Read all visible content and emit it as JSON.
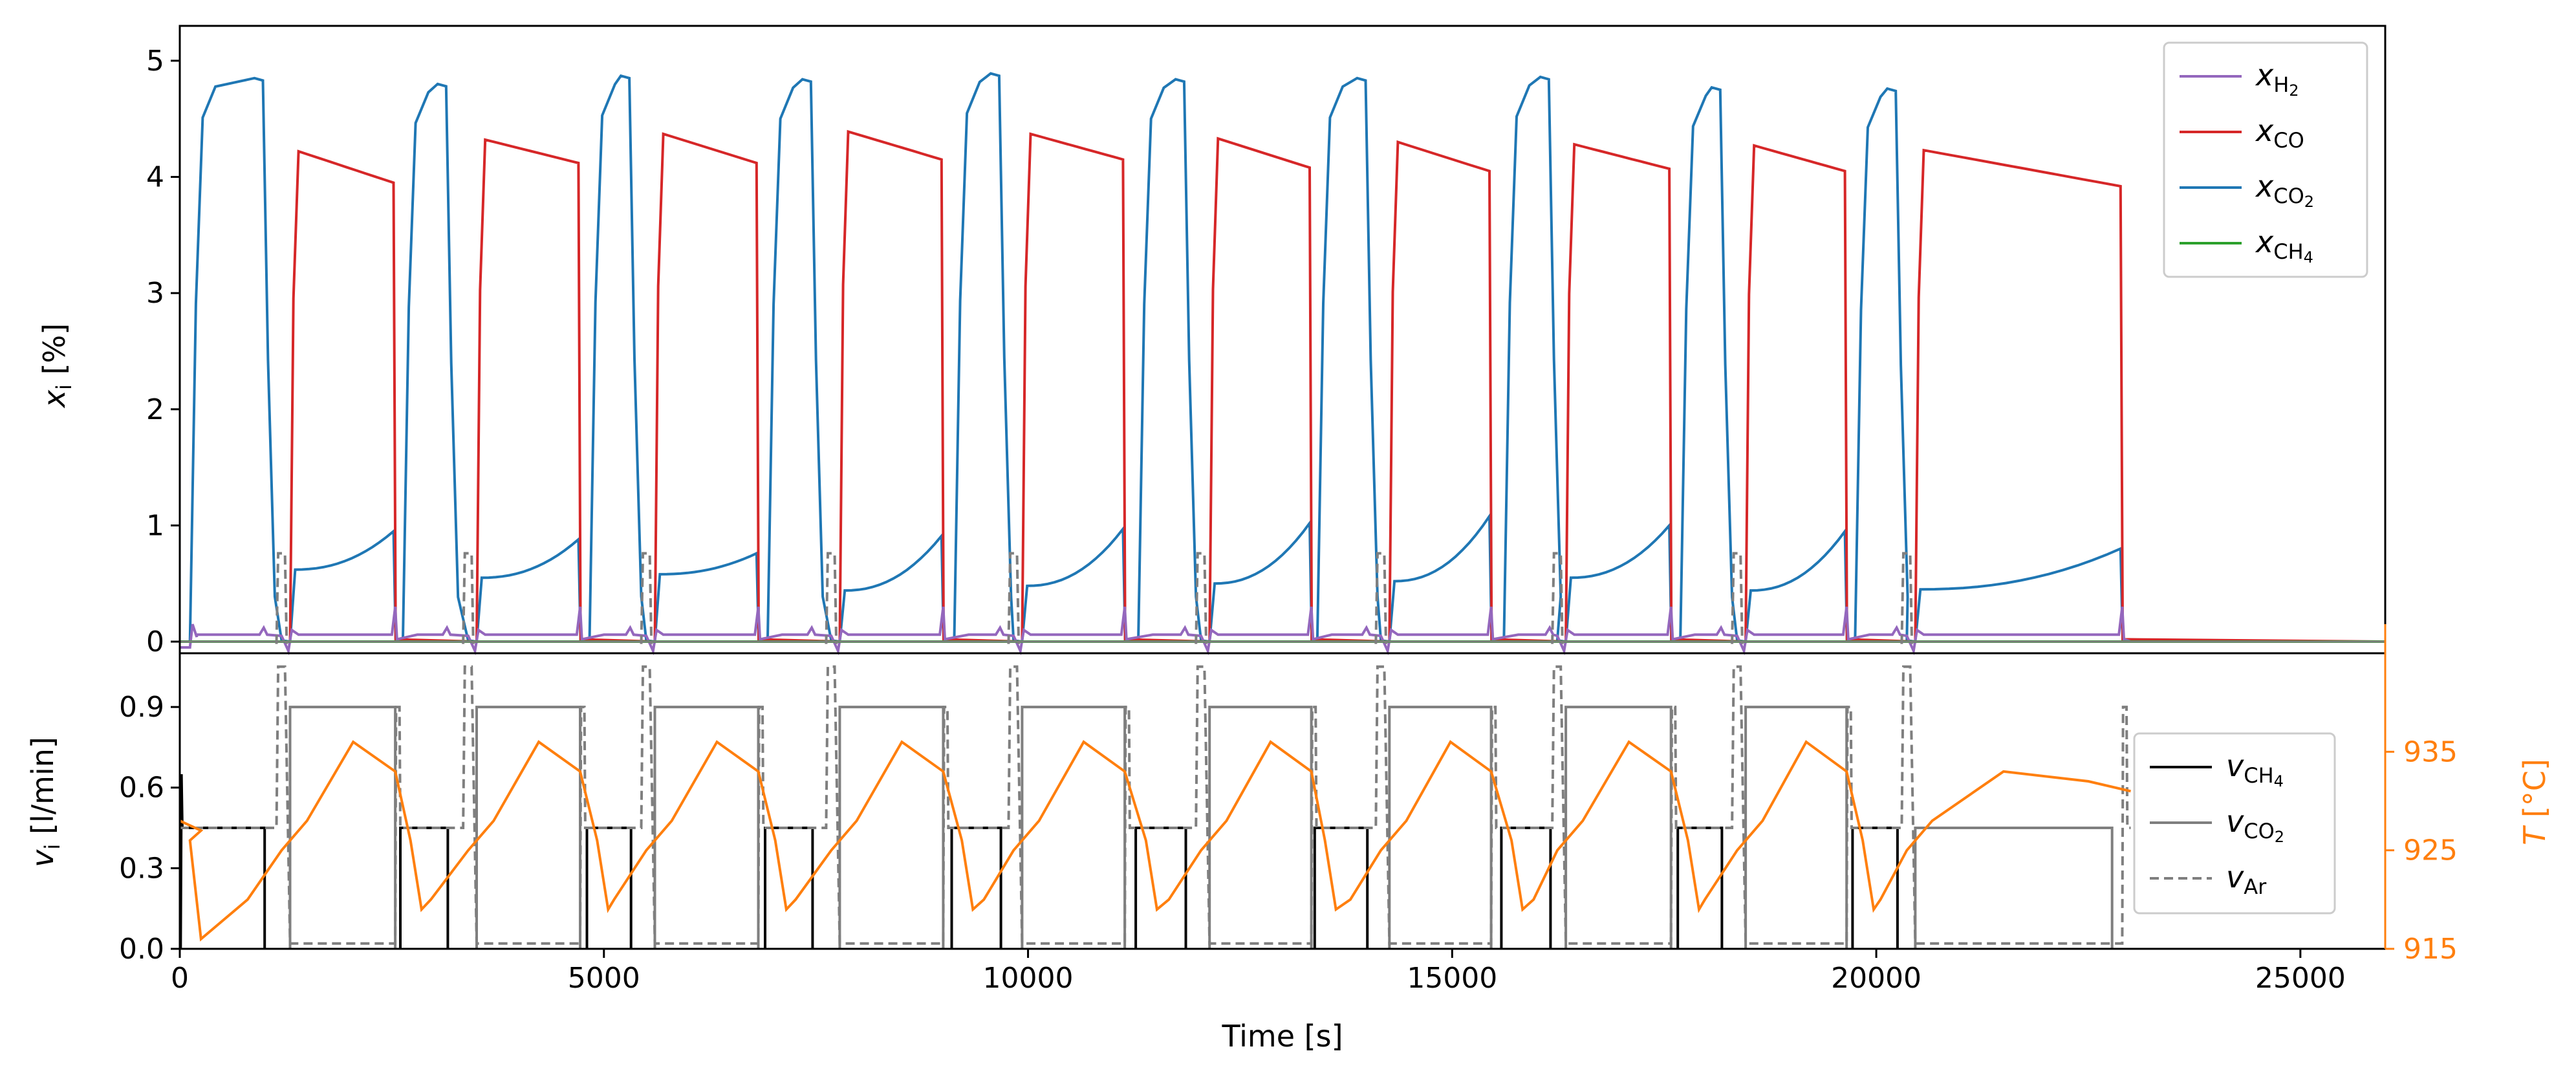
{
  "colors": {
    "h2": "#9467bd",
    "co": "#d62728",
    "co2": "#1f77b4",
    "ch4": "#2ca02c",
    "v_ch4": "#000000",
    "v_co2": "#7f7f7f",
    "v_ar": "#7f7f7f",
    "temperature": "#ff7f0e"
  },
  "chart_data": [
    {
      "type": "line",
      "panel": "top",
      "xlabel": "",
      "ylabel": "x_i [%]",
      "ylabel_parts": {
        "var": "x",
        "sub": "i",
        "unit": " [%]"
      },
      "xlim": [
        0,
        26000
      ],
      "ylim": [
        -0.1,
        5.3
      ],
      "yticks": [
        0,
        1,
        2,
        3,
        4,
        5
      ],
      "legend_position": "top-right",
      "series": [
        {
          "key": "h2",
          "name": "x_H2",
          "legend_base": "x",
          "legend_sub": "H",
          "legend_subsub": "2",
          "baseline": 0.06
        },
        {
          "key": "co",
          "name": "x_CO",
          "legend_base": "x",
          "legend_sub": "CO",
          "legend_subsub": ""
        },
        {
          "key": "co2",
          "name": "x_CO2",
          "legend_base": "x",
          "legend_sub": "CO",
          "legend_subsub": "2"
        },
        {
          "key": "ch4",
          "name": "x_CH4",
          "legend_base": "x",
          "legend_sub": "CH",
          "legend_subsub": "4"
        }
      ],
      "cycles": [
        {
          "ch4_start": 0,
          "ch4_end": 1000,
          "co2_plateau": 4.85,
          "co2_ar_start": 1200,
          "co2_start": 1300,
          "co2_end": 2540,
          "co_start_level": 4.22,
          "co_end_level": 3.95,
          "co2_tail_start": 0.62,
          "co2_tail_end": 0.95
        },
        {
          "ch4_start": 2600,
          "ch4_end": 3160,
          "co2_plateau": 4.8,
          "co2_ar_start": 3400,
          "co2_start": 3500,
          "co2_end": 4720,
          "co_start_level": 4.32,
          "co_end_level": 4.12,
          "co2_tail_start": 0.55,
          "co2_tail_end": 0.88
        },
        {
          "ch4_start": 4800,
          "ch4_end": 5320,
          "co2_plateau": 4.87,
          "co2_ar_start": 5500,
          "co2_start": 5600,
          "co2_end": 6820,
          "co_start_level": 4.37,
          "co_end_level": 4.12,
          "co2_tail_start": 0.58,
          "co2_tail_end": 0.76
        },
        {
          "ch4_start": 6900,
          "ch4_end": 7460,
          "co2_plateau": 4.84,
          "co2_ar_start": 7680,
          "co2_start": 7780,
          "co2_end": 9000,
          "co_start_level": 4.39,
          "co_end_level": 4.15,
          "co2_tail_start": 0.44,
          "co2_tail_end": 0.91
        },
        {
          "ch4_start": 9100,
          "ch4_end": 9680,
          "co2_plateau": 4.89,
          "co2_ar_start": 9830,
          "co2_start": 9930,
          "co2_end": 11140,
          "co_start_level": 4.37,
          "co_end_level": 4.15,
          "co2_tail_start": 0.48,
          "co2_tail_end": 0.97
        },
        {
          "ch4_start": 11270,
          "ch4_end": 11860,
          "co2_plateau": 4.84,
          "co2_ar_start": 12040,
          "co2_start": 12140,
          "co2_end": 13340,
          "co_start_level": 4.33,
          "co_end_level": 4.08,
          "co2_tail_start": 0.5,
          "co2_tail_end": 1.02
        },
        {
          "ch4_start": 13380,
          "ch4_end": 14000,
          "co2_plateau": 4.85,
          "co2_ar_start": 14160,
          "co2_start": 14260,
          "co2_end": 15460,
          "co_start_level": 4.3,
          "co_end_level": 4.05,
          "co2_tail_start": 0.52,
          "co2_tail_end": 1.08
        },
        {
          "ch4_start": 15580,
          "ch4_end": 16160,
          "co2_plateau": 4.86,
          "co2_ar_start": 16240,
          "co2_start": 16340,
          "co2_end": 17580,
          "co_start_level": 4.28,
          "co_end_level": 4.07,
          "co2_tail_start": 0.55,
          "co2_tail_end": 1.0
        },
        {
          "ch4_start": 17660,
          "ch4_end": 18180,
          "co2_plateau": 4.77,
          "co2_ar_start": 18360,
          "co2_start": 18460,
          "co2_end": 19650,
          "co_start_level": 4.27,
          "co_end_level": 4.05,
          "co2_tail_start": 0.44,
          "co2_tail_end": 0.95
        },
        {
          "ch4_start": 19720,
          "ch4_end": 20250,
          "co2_plateau": 4.76,
          "co2_ar_start": 20360,
          "co2_start": 20460,
          "co2_end": 22900,
          "co_start_level": 4.23,
          "co_end_level": 3.92,
          "co2_tail_start": 0.45,
          "co2_tail_end": 0.8
        }
      ]
    },
    {
      "type": "line",
      "panel": "bottom",
      "xlabel": "Time [s]",
      "ylabel": "v_i [l/min]",
      "ylabel_parts": {
        "var": "v",
        "sub": "i",
        "unit": " [l/min]"
      },
      "y2label": "T [°C]",
      "y2label_parts": {
        "var": "T",
        "unit": " [°C]"
      },
      "xlim": [
        0,
        26000
      ],
      "xticks": [
        0,
        5000,
        10000,
        15000,
        20000,
        25000
      ],
      "ylim": [
        0,
        1.1
      ],
      "yticks": [
        "0.0",
        "0.3",
        "0.6",
        "0.9"
      ],
      "y2lim": [
        915,
        945
      ],
      "y2ticks": [
        915,
        925,
        935
      ],
      "legend_position": "right",
      "series": [
        {
          "key": "v_ch4",
          "name": "v_CH4",
          "legend_base": "v",
          "legend_sub": "CH",
          "legend_subsub": "4",
          "style": "solid"
        },
        {
          "key": "v_co2",
          "name": "v_CO2",
          "legend_base": "v",
          "legend_sub": "CO",
          "legend_subsub": "2",
          "style": "solid"
        },
        {
          "key": "v_ar",
          "name": "v_Ar",
          "legend_base": "v",
          "legend_sub": "Ar",
          "legend_subsub": "",
          "style": "dashed"
        },
        {
          "key": "temperature",
          "name": "T",
          "axis": "right"
        }
      ],
      "flow_levels": {
        "v_ch4": 0.45,
        "v_co2": 0.9,
        "v_co2_final": 0.45,
        "v_ar": 0.75
      },
      "temperature_profile": {
        "start": 928,
        "min": 916,
        "peak": 936,
        "final_peak": 933,
        "final_end": 931
      }
    }
  ]
}
